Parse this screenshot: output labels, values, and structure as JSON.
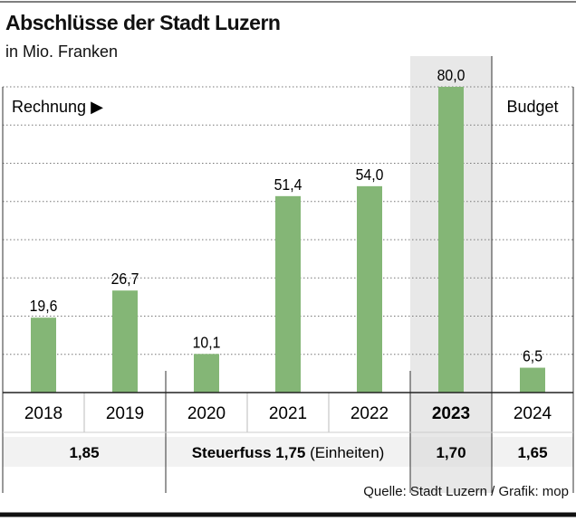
{
  "chart_data": {
    "type": "bar",
    "title": "Abschlüsse der Stadt Luzern",
    "subtitle": "in Mio. Franken",
    "categories": [
      "2018",
      "2019",
      "2020",
      "2021",
      "2022",
      "2023",
      "2024"
    ],
    "values": [
      19.6,
      26.7,
      10.1,
      51.4,
      54.0,
      80.0,
      6.5
    ],
    "value_labels": [
      "19,6",
      "26,7",
      "10,1",
      "51,4",
      "54,0",
      "80,0",
      "6,5"
    ],
    "highlighted_category": "2023",
    "ylim": [
      0,
      80
    ],
    "grid": true,
    "grid_style": "dotted",
    "section_labels": {
      "actual": "Rechnung ▶",
      "budget": "Budget"
    },
    "tax_rate_row": [
      {
        "label": "1,85",
        "span": [
          "2018",
          "2019"
        ]
      },
      {
        "label_bold": "Steuerfuss 1,75",
        "label_normal": " (Einheiten)",
        "span": [
          "2020",
          "2022"
        ]
      },
      {
        "label": "1,70",
        "span": [
          "2023"
        ]
      },
      {
        "label": "1,65",
        "span": [
          "2024"
        ]
      }
    ],
    "source": "Quelle: Stadt Luzern / Grafik: mop"
  },
  "colors": {
    "bar": "#84b676",
    "highlight_bg": "#e8e8e8",
    "row_bg": "#f2f2f2"
  }
}
